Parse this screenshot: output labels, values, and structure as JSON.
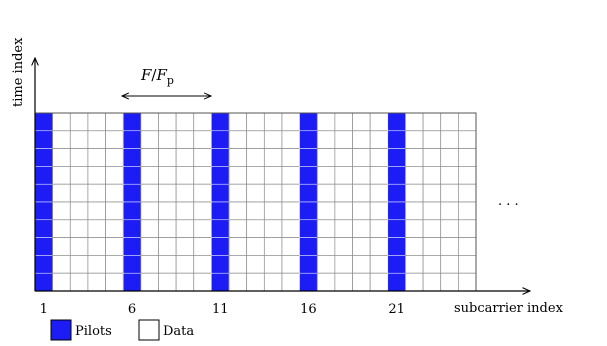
{
  "axes": {
    "y_label": "time index",
    "x_label": "subcarrier index"
  },
  "spacing_label": {
    "numerator": "F",
    "denominator": "F",
    "denominator_subscript": "p"
  },
  "grid": {
    "subcarriers": 25,
    "time_slots": 10,
    "pilot_subcarriers": [
      1,
      6,
      11,
      16,
      21
    ],
    "tick_labels": [
      "1",
      "6",
      "11",
      "16",
      "21"
    ]
  },
  "ellipsis": ". . .",
  "legend": {
    "pilots": "Pilots",
    "data": "Data"
  },
  "colors": {
    "pilot": "#1c1cf5",
    "grid_line": "#8c8c8c",
    "frame": "#555555",
    "axis": "#000000"
  }
}
